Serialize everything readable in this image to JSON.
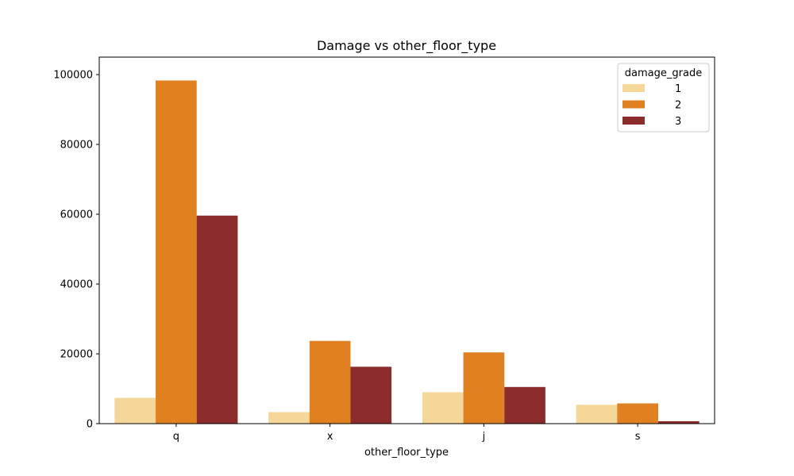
{
  "chart_data": {
    "type": "bar",
    "title": "Damage vs other_floor_type",
    "xlabel": "other_floor_type",
    "ylabel": "",
    "categories": [
      "q",
      "x",
      "j",
      "s"
    ],
    "ylim": [
      0,
      105000
    ],
    "yticks": [
      0,
      20000,
      40000,
      60000,
      80000,
      100000
    ],
    "grid": false,
    "legend": {
      "title": "damage_grade",
      "position": "top-right"
    },
    "series": [
      {
        "name": "1",
        "color": "#f5d899",
        "values": [
          7400,
          3300,
          9000,
          5400
        ]
      },
      {
        "name": "2",
        "color": "#e08020",
        "values": [
          98300,
          23700,
          20400,
          5800
        ]
      },
      {
        "name": "3",
        "color": "#8b2b2c",
        "values": [
          59600,
          16300,
          10500,
          700
        ]
      }
    ]
  }
}
